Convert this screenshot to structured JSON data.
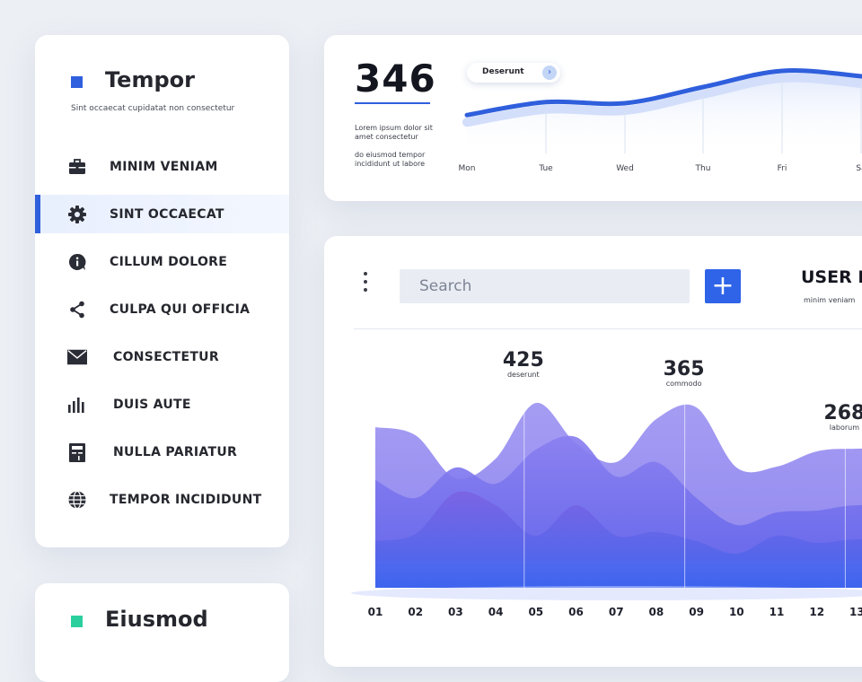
{
  "sidebar": {
    "title": "Tempor",
    "subtitle": "Sint occaecat cupidatat non consectetur",
    "accent_color": "#2f5fdc",
    "items": [
      {
        "label": "MINIM VENIAM",
        "icon": "briefcase-icon",
        "active": false
      },
      {
        "label": "SINT OCCAECAT",
        "icon": "gear-icon",
        "active": true
      },
      {
        "label": "CILLUM DOLORE",
        "icon": "info-bubble-icon",
        "active": false
      },
      {
        "label": "CULPA QUI OFFICIA",
        "icon": "share-icon",
        "active": false
      },
      {
        "label": "CONSECTETUR",
        "icon": "mail-icon",
        "active": false
      },
      {
        "label": "DUIS AUTE",
        "icon": "bar-chart-icon",
        "active": false
      },
      {
        "label": "NULLA PARIATUR",
        "icon": "calculator-icon",
        "active": false
      },
      {
        "label": "TEMPOR INCIDIDUNT",
        "icon": "globe-icon",
        "active": false
      }
    ]
  },
  "card2": {
    "title": "Eiusmod",
    "accent_color": "#2bcf9d"
  },
  "top_card": {
    "number": "346",
    "desc1": "Lorem ipsum dolor sit amet consectetur",
    "desc2": "do eiusmod tempor incididunt ut labore",
    "pill_label": "Deserunt",
    "pill_icon": "chevron-right-icon"
  },
  "main_card": {
    "search_placeholder": "Search",
    "add_icon": "plus-icon",
    "user_name": "USER N",
    "user_sub": "minim veniam"
  },
  "chart_data": [
    {
      "type": "line",
      "categories": [
        "Mon",
        "Tue",
        "Wed",
        "Thu",
        "Fri",
        "Sa"
      ],
      "series": [
        {
          "values": [
            0.18,
            0.42,
            0.4,
            0.7,
            1.0,
            0.9
          ]
        }
      ],
      "color": "#2f5fdc"
    },
    {
      "type": "area",
      "categories": [
        "01",
        "02",
        "03",
        "04",
        "05",
        "06",
        "07",
        "08",
        "09",
        "10",
        "11",
        "12",
        "13"
      ],
      "annotations": [
        {
          "value": "425",
          "label": "deserunt",
          "category": "05"
        },
        {
          "value": "365",
          "label": "commodo",
          "category": "09"
        },
        {
          "value": "268",
          "label": "laborum",
          "category": "13"
        }
      ],
      "colors": [
        "#948cf0",
        "#7d70e6",
        "#4f62ea"
      ]
    }
  ]
}
